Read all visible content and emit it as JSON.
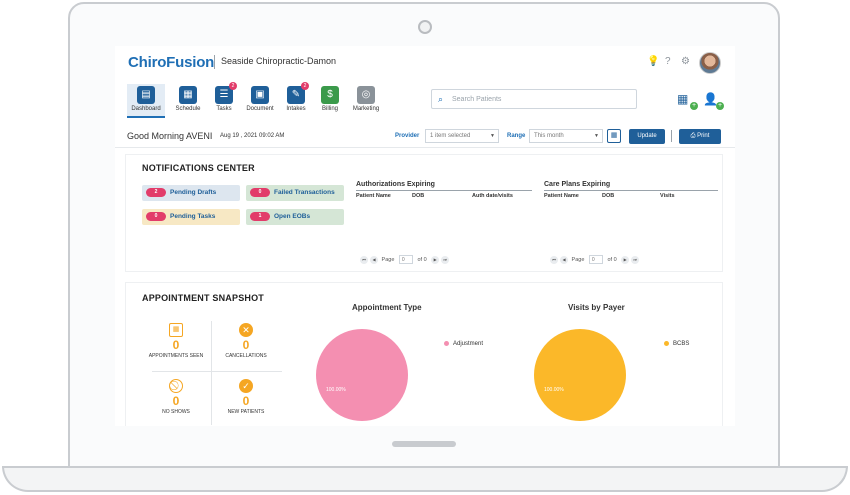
{
  "brand": {
    "logo": "ChiroFusion",
    "clinic": "Seaside Chiropractic-Damon"
  },
  "top_icons": [
    "lightbulb-icon",
    "help-icon",
    "gear-icon",
    "avatar"
  ],
  "nav": {
    "items": [
      {
        "label": "Dashboard",
        "icon": "dashboard-icon",
        "glyph": "▤",
        "badge": null,
        "color": "#1f5f99",
        "active": true
      },
      {
        "label": "Schedule",
        "icon": "calendar-icon",
        "glyph": "▦",
        "badge": null,
        "color": "#1f5f99"
      },
      {
        "label": "Tasks",
        "icon": "tasks-icon",
        "glyph": "☰",
        "badge": "2",
        "color": "#1f5f99"
      },
      {
        "label": "Document",
        "icon": "document-icon",
        "glyph": "▣",
        "badge": null,
        "color": "#1f5f99"
      },
      {
        "label": "Intakes",
        "icon": "intakes-icon",
        "glyph": "✎",
        "badge": "2",
        "color": "#1f5f99"
      },
      {
        "label": "Billing",
        "icon": "billing-icon",
        "glyph": "$",
        "badge": null,
        "color": "#3b9a4b"
      },
      {
        "label": "Marketing",
        "icon": "marketing-icon",
        "glyph": "◎",
        "badge": null,
        "color": "#8a9299"
      }
    ]
  },
  "search": {
    "placeholder": "Search Patients"
  },
  "greeting": {
    "text": "Good Morning AVENI",
    "date": "Aug 19 , 2021 09:02 AM"
  },
  "filters": {
    "provider_label": "Provider",
    "provider_value": "1 item selected",
    "range_label": "Range",
    "range_value": "This month",
    "update_label": "Update",
    "print_label": "Print"
  },
  "notifications": {
    "title": "NOTIFICATIONS CENTER",
    "cards": [
      {
        "count": "2",
        "label": "Pending Drafts",
        "bg": "#dde6ef"
      },
      {
        "count": "0",
        "label": "Failed Transactions",
        "bg": "#d5e6d6"
      },
      {
        "count": "0",
        "label": "Pending Tasks",
        "bg": "#f7e8c4"
      },
      {
        "count": "1",
        "label": "Open EOBs",
        "bg": "#d5e6d6"
      }
    ],
    "auth": {
      "title": "Authorizations Expiring",
      "cols": [
        "Patient Name",
        "DOB",
        "Auth date/visits"
      ],
      "page_label": "Page",
      "page_value": "0",
      "of_label": "of 0"
    },
    "care": {
      "title": "Care Plans Expiring",
      "cols": [
        "Patient Name",
        "DOB",
        "Visits"
      ],
      "page_label": "Page",
      "page_value": "0",
      "of_label": "of 0"
    }
  },
  "snapshot": {
    "title": "APPOINTMENT SNAPSHOT",
    "stats": [
      {
        "label": "APPOINTMENTS SEEN",
        "value": "0",
        "icon": "calendar-icon"
      },
      {
        "label": "CANCELLATIONS",
        "value": "0",
        "icon": "cancel-icon"
      },
      {
        "label": "NO SHOWS",
        "value": "0",
        "icon": "no-show-icon"
      },
      {
        "label": "NEW PATIENTS",
        "value": "0",
        "icon": "check-icon"
      }
    ]
  },
  "chart_data": [
    {
      "type": "pie",
      "title": "Appointment Type",
      "slices": [
        {
          "name": "Adjustment",
          "value": 100,
          "label": "100.00%",
          "color": "#f48fb1"
        }
      ]
    },
    {
      "type": "pie",
      "title": "Visits by Payer",
      "slices": [
        {
          "name": "BCBS",
          "value": 100,
          "label": "100.00%",
          "color": "#fbb829"
        }
      ]
    }
  ]
}
